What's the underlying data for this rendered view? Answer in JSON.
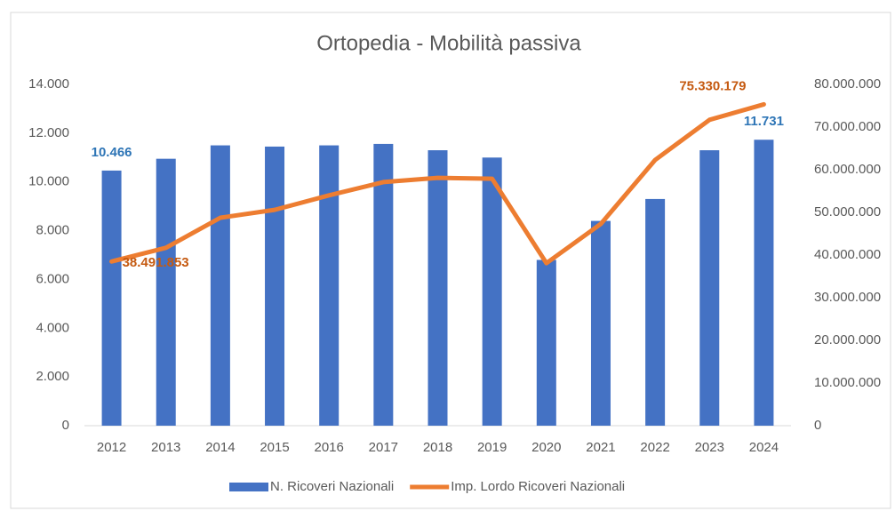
{
  "chart_data": {
    "type": "bar-line",
    "title": "Ortopedia - Mobilità passiva",
    "categories": [
      "2012",
      "2013",
      "2014",
      "2015",
      "2016",
      "2017",
      "2018",
      "2019",
      "2020",
      "2021",
      "2022",
      "2023",
      "2024"
    ],
    "series": [
      {
        "name": "N. Ricoveri Nazionali",
        "type": "bar",
        "color": "#4472c4",
        "label_color": "#2e75b6",
        "values": [
          10466,
          10950,
          11500,
          11450,
          11500,
          11560,
          11300,
          11000,
          6800,
          8400,
          9300,
          11300,
          11731
        ],
        "value_labels": [
          "10.466",
          null,
          null,
          null,
          null,
          null,
          null,
          null,
          null,
          null,
          null,
          null,
          "11.731"
        ]
      },
      {
        "name": "Imp. Lordo Ricoveri Nazionali",
        "type": "line",
        "axis": "y2",
        "color": "#ed7d31",
        "label_color": "#c55a11",
        "values": [
          38491853,
          41700000,
          48750000,
          50600000,
          54000000,
          57100000,
          58100000,
          57900000,
          38100000,
          47300000,
          62300000,
          71700000,
          75330179
        ],
        "value_labels": [
          "38.491.853",
          null,
          null,
          null,
          null,
          null,
          null,
          null,
          null,
          null,
          null,
          null,
          "75.330.179"
        ]
      }
    ],
    "ylim": [
      0,
      14000
    ],
    "yticks": [
      0,
      {
        "value": 2000,
        "label": "2.000"
      },
      {
        "value": 4000,
        "label": "4.000"
      },
      {
        "value": 6000,
        "label": "6.000"
      },
      {
        "value": 8000,
        "label": "8.000"
      },
      {
        "value": 10000,
        "label": "10.000"
      },
      {
        "value": 12000,
        "label": "12.000"
      },
      {
        "value": 14000,
        "label": "14.000"
      }
    ],
    "y2lim": [
      0,
      80000000
    ],
    "y2ticks": [
      0,
      {
        "value": 10000000,
        "label": "10.000.000"
      },
      {
        "value": 20000000,
        "label": "20.000.000"
      },
      {
        "value": 30000000,
        "label": "30.000.000"
      },
      {
        "value": 40000000,
        "label": "40.000.000"
      },
      {
        "value": 50000000,
        "label": "50.000.000"
      },
      {
        "value": 60000000,
        "label": "60.000.000"
      },
      {
        "value": 70000000,
        "label": "70.000.000"
      },
      {
        "value": 80000000,
        "label": "80.000.000"
      }
    ],
    "legend": "bottom"
  }
}
